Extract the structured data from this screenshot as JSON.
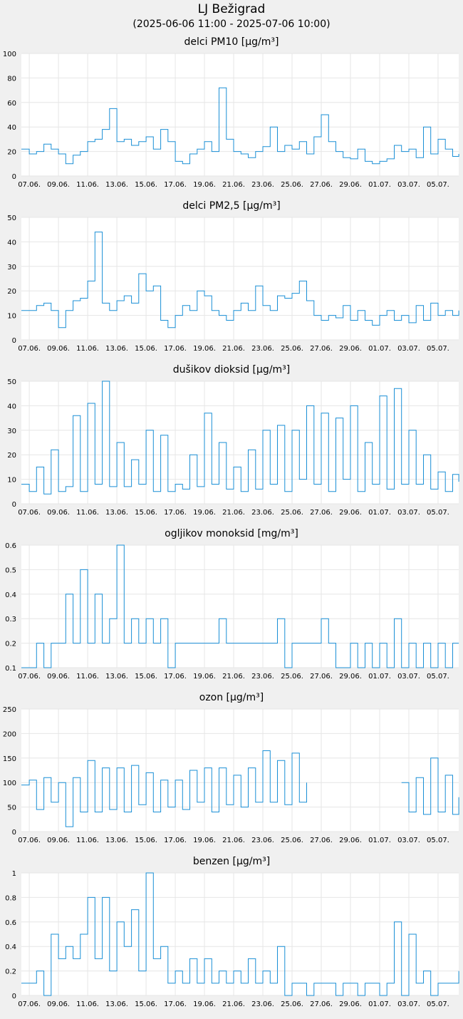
{
  "header": {
    "station": "LJ Bežigrad",
    "range": "(2025-06-06 11:00 - 2025-07-06 10:00)"
  },
  "colors": {
    "line": "#1a8fd6",
    "grid": "#e6e6e6",
    "plot_bg": "#ffffff",
    "page_bg": "#f0f0f0"
  },
  "x_tick_labels": [
    "07.06.",
    "09.06.",
    "11.06.",
    "13.06.",
    "15.06.",
    "17.06.",
    "19.06.",
    "21.06.",
    "23.06.",
    "25.06.",
    "27.06.",
    "29.06.",
    "01.07.",
    "03.07.",
    "05.07."
  ],
  "chart_data": [
    {
      "type": "line",
      "title": "delci PM10 [µg/m³]",
      "x_unit": "days from 2025-06-06 00:00",
      "xlim": [
        0.4583,
        30.4167
      ],
      "ylim": [
        0,
        100
      ],
      "y_ticks": [
        0,
        20,
        40,
        60,
        80,
        100
      ],
      "y_tick_labels": [
        "0",
        "20",
        "40",
        "60",
        "80",
        "100"
      ],
      "x": [
        0.46,
        1.0,
        1.5,
        2.0,
        2.5,
        3.0,
        3.5,
        4.0,
        4.5,
        5.0,
        5.5,
        6.0,
        6.5,
        7.0,
        7.5,
        8.0,
        8.5,
        9.0,
        9.5,
        10.0,
        10.5,
        11.0,
        11.5,
        12.0,
        12.5,
        13.0,
        13.5,
        14.0,
        14.5,
        15.0,
        15.5,
        16.0,
        16.5,
        17.0,
        17.5,
        18.0,
        18.5,
        19.0,
        19.5,
        20.0,
        20.5,
        21.0,
        21.5,
        22.0,
        22.5,
        23.0,
        23.5,
        24.0,
        24.5,
        25.0,
        25.5,
        26.0,
        26.5,
        27.0,
        27.5,
        28.0,
        28.5,
        29.0,
        29.5,
        30.0,
        30.42
      ],
      "series": [
        {
          "values": [
            22,
            18,
            20,
            26,
            22,
            18,
            10,
            17,
            20,
            28,
            30,
            38,
            55,
            28,
            30,
            25,
            28,
            32,
            22,
            38,
            28,
            12,
            10,
            18,
            22,
            28,
            20,
            72,
            30,
            20,
            18,
            15,
            20,
            24,
            40,
            20,
            25,
            22,
            28,
            18,
            32,
            50,
            28,
            20,
            15,
            14,
            22,
            12,
            10,
            12,
            14,
            25,
            20,
            22,
            15,
            40,
            18,
            30,
            22,
            16,
            18
          ]
        }
      ]
    },
    {
      "type": "line",
      "title": "delci PM2,5 [µg/m³]",
      "x_unit": "days from 2025-06-06 00:00",
      "xlim": [
        0.4583,
        30.4167
      ],
      "ylim": [
        0,
        50
      ],
      "y_ticks": [
        0,
        10,
        20,
        30,
        40,
        50
      ],
      "y_tick_labels": [
        "0",
        "10",
        "20",
        "30",
        "40",
        "50"
      ],
      "x": [
        0.46,
        1.0,
        1.5,
        2.0,
        2.5,
        3.0,
        3.5,
        4.0,
        4.5,
        5.0,
        5.5,
        6.0,
        6.5,
        7.0,
        7.5,
        8.0,
        8.5,
        9.0,
        9.5,
        10.0,
        10.5,
        11.0,
        11.5,
        12.0,
        12.5,
        13.0,
        13.5,
        14.0,
        14.5,
        15.0,
        15.5,
        16.0,
        16.5,
        17.0,
        17.5,
        18.0,
        18.5,
        19.0,
        19.5,
        20.0,
        20.5,
        21.0,
        21.5,
        22.0,
        22.5,
        23.0,
        23.5,
        24.0,
        24.5,
        25.0,
        25.5,
        26.0,
        26.5,
        27.0,
        27.5,
        28.0,
        28.5,
        29.0,
        29.5,
        30.0,
        30.42
      ],
      "series": [
        {
          "values": [
            12,
            12,
            14,
            15,
            12,
            5,
            12,
            16,
            17,
            24,
            44,
            15,
            12,
            16,
            18,
            15,
            27,
            20,
            22,
            8,
            5,
            10,
            14,
            12,
            20,
            18,
            12,
            10,
            8,
            12,
            15,
            12,
            22,
            14,
            12,
            18,
            17,
            19,
            24,
            16,
            10,
            8,
            10,
            9,
            14,
            8,
            12,
            8,
            6,
            10,
            12,
            8,
            10,
            7,
            14,
            8,
            15,
            10,
            12,
            10,
            12
          ]
        }
      ]
    },
    {
      "type": "line",
      "title": "dušikov dioksid [µg/m³]",
      "x_unit": "days from 2025-06-06 00:00",
      "xlim": [
        0.4583,
        30.4167
      ],
      "ylim": [
        0,
        50
      ],
      "y_ticks": [
        0,
        10,
        20,
        30,
        40,
        50
      ],
      "y_tick_labels": [
        "0",
        "10",
        "20",
        "30",
        "40",
        "50"
      ],
      "x": [
        0.46,
        1.0,
        1.5,
        2.0,
        2.5,
        3.0,
        3.5,
        4.0,
        4.5,
        5.0,
        5.5,
        6.0,
        6.5,
        7.0,
        7.5,
        8.0,
        8.5,
        9.0,
        9.5,
        10.0,
        10.5,
        11.0,
        11.5,
        12.0,
        12.5,
        13.0,
        13.5,
        14.0,
        14.5,
        15.0,
        15.5,
        16.0,
        16.5,
        17.0,
        17.5,
        18.0,
        18.5,
        19.0,
        19.5,
        20.0,
        20.5,
        21.0,
        21.5,
        22.0,
        22.5,
        23.0,
        23.5,
        24.0,
        24.5,
        25.0,
        25.5,
        26.0,
        26.5,
        27.0,
        27.5,
        28.0,
        28.5,
        29.0,
        29.5,
        30.0,
        30.42
      ],
      "series": [
        {
          "values": [
            8,
            5,
            15,
            4,
            22,
            5,
            7,
            36,
            5,
            41,
            8,
            50,
            7,
            25,
            7,
            18,
            8,
            30,
            5,
            28,
            5,
            8,
            6,
            20,
            7,
            37,
            8,
            25,
            6,
            15,
            5,
            22,
            6,
            30,
            8,
            32,
            5,
            30,
            10,
            40,
            8,
            37,
            5,
            35,
            10,
            40,
            5,
            25,
            8,
            44,
            6,
            47,
            8,
            30,
            8,
            20,
            6,
            13,
            5,
            12,
            9
          ]
        }
      ]
    },
    {
      "type": "line",
      "title": "ogljikov monoksid [mg/m³]",
      "x_unit": "days from 2025-06-06 00:00",
      "xlim": [
        0.4583,
        30.4167
      ],
      "ylim": [
        0.1,
        0.6
      ],
      "y_ticks": [
        0.1,
        0.2,
        0.3,
        0.4,
        0.5,
        0.6
      ],
      "y_tick_labels": [
        "0.1",
        "0.2",
        "0.3",
        "0.4",
        "0.5",
        "0.6"
      ],
      "x": [
        0.46,
        1.0,
        1.5,
        2.0,
        2.5,
        3.0,
        3.5,
        4.0,
        4.5,
        5.0,
        5.5,
        6.0,
        6.5,
        7.0,
        7.5,
        8.0,
        8.5,
        9.0,
        9.5,
        10.0,
        10.5,
        11.0,
        11.5,
        12.0,
        12.5,
        13.0,
        13.5,
        14.0,
        14.5,
        15.0,
        15.5,
        16.0,
        16.5,
        17.0,
        17.5,
        18.0,
        18.5,
        19.0,
        19.5,
        20.0,
        20.5,
        21.0,
        21.5,
        22.0,
        22.5,
        23.0,
        23.5,
        24.0,
        24.5,
        25.0,
        25.5,
        26.0,
        26.5,
        27.0,
        27.5,
        28.0,
        28.5,
        29.0,
        29.5,
        30.0,
        30.42
      ],
      "series": [
        {
          "values": [
            0.1,
            0.1,
            0.2,
            0.1,
            0.2,
            0.2,
            0.4,
            0.2,
            0.5,
            0.2,
            0.4,
            0.2,
            0.3,
            0.6,
            0.2,
            0.3,
            0.2,
            0.3,
            0.2,
            0.3,
            0.1,
            0.2,
            0.2,
            0.2,
            0.2,
            0.2,
            0.2,
            0.3,
            0.2,
            0.2,
            0.2,
            0.2,
            0.2,
            0.2,
            0.2,
            0.3,
            0.1,
            0.2,
            0.2,
            0.2,
            0.2,
            0.3,
            0.2,
            0.1,
            0.1,
            0.2,
            0.1,
            0.2,
            0.1,
            0.2,
            0.1,
            0.3,
            0.1,
            0.2,
            0.1,
            0.2,
            0.1,
            0.2,
            0.1,
            0.2,
            0.2
          ]
        }
      ]
    },
    {
      "type": "line",
      "title": "ozon [µg/m³]",
      "x_unit": "days from 2025-06-06 00:00",
      "xlim": [
        0.4583,
        30.4167
      ],
      "ylim": [
        0,
        250
      ],
      "y_ticks": [
        0,
        50,
        100,
        150,
        200,
        250
      ],
      "y_tick_labels": [
        "0",
        "50",
        "100",
        "150",
        "200",
        "250"
      ],
      "x": [
        0.46,
        1.0,
        1.5,
        2.0,
        2.5,
        3.0,
        3.5,
        4.0,
        4.5,
        5.0,
        5.5,
        6.0,
        6.5,
        7.0,
        7.5,
        8.0,
        8.5,
        9.0,
        9.5,
        10.0,
        10.5,
        11.0,
        11.5,
        12.0,
        12.5,
        13.0,
        13.5,
        14.0,
        14.5,
        15.0,
        15.5,
        16.0,
        16.5,
        17.0,
        17.5,
        18.0,
        18.5,
        19.0,
        19.5,
        20.0,
        20.5,
        21.0,
        21.5,
        22.0,
        22.5,
        23.0,
        23.5,
        24.0,
        24.5,
        25.0,
        25.5,
        26.0,
        26.5,
        27.0,
        27.5,
        28.0,
        28.5,
        29.0,
        29.5,
        30.0,
        30.42
      ],
      "series": [
        {
          "values": [
            95,
            105,
            45,
            110,
            60,
            100,
            10,
            110,
            40,
            145,
            40,
            130,
            45,
            130,
            40,
            135,
            55,
            120,
            40,
            105,
            50,
            105,
            45,
            125,
            60,
            130,
            40,
            130,
            55,
            115,
            50,
            130,
            60,
            165,
            60,
            145,
            55,
            160,
            60,
            100,
            null,
            null,
            null,
            null,
            null,
            null,
            null,
            null,
            null,
            null,
            null,
            null,
            100,
            40,
            110,
            35,
            150,
            40,
            115,
            35,
            70
          ]
        }
      ]
    },
    {
      "type": "line",
      "title": "benzen [µg/m³]",
      "x_unit": "days from 2025-06-06 00:00",
      "xlim": [
        0.4583,
        30.4167
      ],
      "ylim": [
        0,
        1
      ],
      "y_ticks": [
        0,
        0.2,
        0.4,
        0.6,
        0.8,
        1
      ],
      "y_tick_labels": [
        "0",
        "0.2",
        "0.4",
        "0.6",
        "0.8",
        "1"
      ],
      "x": [
        0.46,
        1.0,
        1.5,
        2.0,
        2.5,
        3.0,
        3.5,
        4.0,
        4.5,
        5.0,
        5.5,
        6.0,
        6.5,
        7.0,
        7.5,
        8.0,
        8.5,
        9.0,
        9.5,
        10.0,
        10.5,
        11.0,
        11.5,
        12.0,
        12.5,
        13.0,
        13.5,
        14.0,
        14.5,
        15.0,
        15.5,
        16.0,
        16.5,
        17.0,
        17.5,
        18.0,
        18.5,
        19.0,
        19.5,
        20.0,
        20.5,
        21.0,
        21.5,
        22.0,
        22.5,
        23.0,
        23.5,
        24.0,
        24.5,
        25.0,
        25.5,
        26.0,
        26.5,
        27.0,
        27.5,
        28.0,
        28.5,
        29.0,
        29.5,
        30.0,
        30.42
      ],
      "series": [
        {
          "values": [
            0.1,
            0.1,
            0.2,
            0.0,
            0.5,
            0.3,
            0.4,
            0.3,
            0.5,
            0.8,
            0.3,
            0.8,
            0.2,
            0.6,
            0.4,
            0.7,
            0.2,
            1.0,
            0.3,
            0.4,
            0.1,
            0.2,
            0.1,
            0.3,
            0.1,
            0.3,
            0.1,
            0.2,
            0.1,
            0.2,
            0.1,
            0.3,
            0.1,
            0.2,
            0.1,
            0.4,
            0.0,
            0.1,
            0.1,
            0.0,
            0.1,
            0.1,
            0.1,
            0.0,
            0.1,
            0.1,
            0.0,
            0.1,
            0.1,
            0.0,
            0.1,
            0.6,
            0.0,
            0.5,
            0.1,
            0.2,
            0.0,
            0.1,
            0.1,
            0.1,
            0.2
          ]
        }
      ]
    }
  ]
}
